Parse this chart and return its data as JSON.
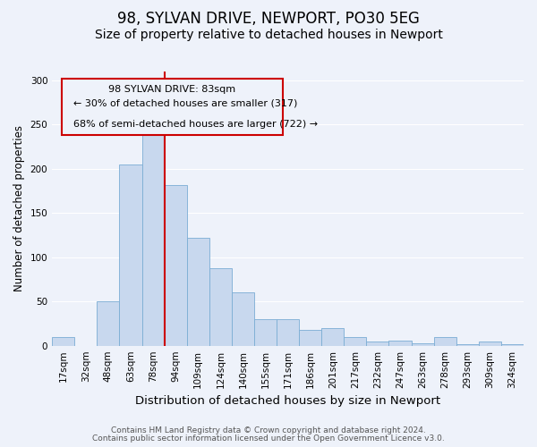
{
  "title": "98, SYLVAN DRIVE, NEWPORT, PO30 5EG",
  "subtitle": "Size of property relative to detached houses in Newport",
  "xlabel": "Distribution of detached houses by size in Newport",
  "ylabel": "Number of detached properties",
  "bar_color": "#c8d8ee",
  "bar_edge_color": "#7badd4",
  "bin_labels": [
    "17sqm",
    "32sqm",
    "48sqm",
    "63sqm",
    "78sqm",
    "94sqm",
    "109sqm",
    "124sqm",
    "140sqm",
    "155sqm",
    "171sqm",
    "186sqm",
    "201sqm",
    "217sqm",
    "232sqm",
    "247sqm",
    "263sqm",
    "278sqm",
    "293sqm",
    "309sqm",
    "324sqm"
  ],
  "bar_values": [
    10,
    0,
    50,
    205,
    240,
    182,
    122,
    88,
    60,
    30,
    30,
    18,
    20,
    10,
    5,
    6,
    3,
    10,
    2,
    5,
    2
  ],
  "vline_x": 4.5,
  "vline_color": "#cc0000",
  "ylim": [
    0,
    310
  ],
  "yticks": [
    0,
    50,
    100,
    150,
    200,
    250,
    300
  ],
  "annotation_title": "98 SYLVAN DRIVE: 83sqm",
  "annotation_line1": "← 30% of detached houses are smaller (317)",
  "annotation_line2": "68% of semi-detached houses are larger (722) →",
  "footnote1": "Contains HM Land Registry data © Crown copyright and database right 2024.",
  "footnote2": "Contains public sector information licensed under the Open Government Licence v3.0.",
  "bg_color": "#eef2fa",
  "grid_color": "#ffffff",
  "title_fontsize": 12,
  "subtitle_fontsize": 10,
  "xlabel_fontsize": 9.5,
  "ylabel_fontsize": 8.5,
  "tick_fontsize": 7.5,
  "annot_fontsize": 8,
  "footnote_fontsize": 6.5
}
